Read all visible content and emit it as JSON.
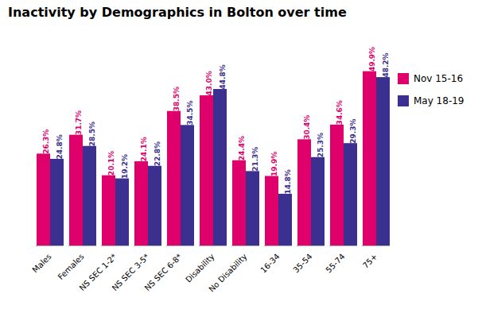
{
  "chart_data": {
    "type": "bar",
    "title": "Inactivity by Demographics in Bolton over time",
    "categories": [
      "Males",
      "Females",
      "NS SEC 1-2*",
      "NS SEC 3-5*",
      "NS SEC 6-8*",
      "Disability",
      "No Disability",
      "16-34",
      "35-54",
      "55-74",
      "75+"
    ],
    "series": [
      {
        "name": "Nov 15-16",
        "color": "#E0006B",
        "values": [
          26.3,
          31.7,
          20.1,
          24.1,
          38.5,
          43.0,
          24.4,
          19.9,
          30.4,
          34.6,
          49.9
        ],
        "value_labels": [
          "26.3%",
          "31.7%",
          "20.1%",
          "24.1%",
          "38.5%",
          "43.0%",
          "24.4%",
          "19.9%",
          "30.4%",
          "34.6%",
          "49.9%"
        ]
      },
      {
        "name": "May 18-19",
        "color": "#3B2F8F",
        "values": [
          24.8,
          28.5,
          19.2,
          22.8,
          34.5,
          44.8,
          21.3,
          14.8,
          25.3,
          29.3,
          48.2
        ],
        "value_labels": [
          "24.8%",
          "28.5%",
          "19.2%",
          "22.8%",
          "34.5%",
          "44.8%",
          "21.3%",
          "14.8%",
          "25.3%",
          "29.3%",
          "48.2%"
        ]
      }
    ],
    "ylim": [
      0,
      58
    ],
    "data_labels": true,
    "tick_labels": "x",
    "grid": false,
    "legend": "right"
  }
}
